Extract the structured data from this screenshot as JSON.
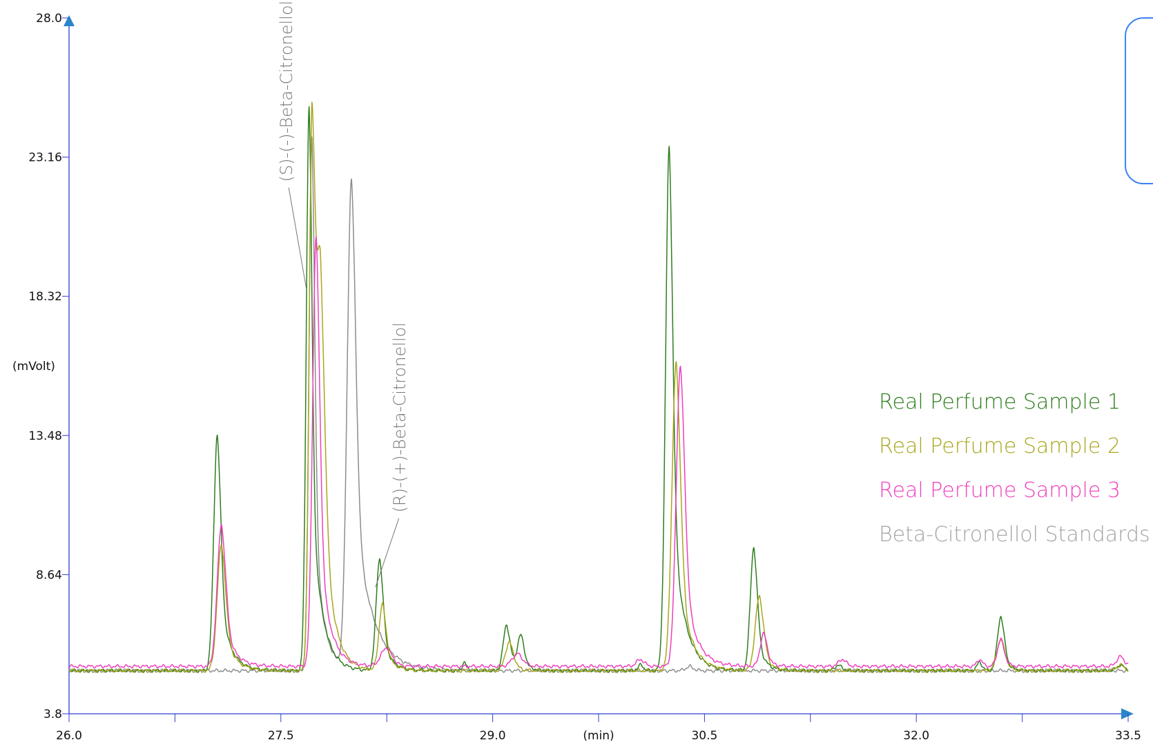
{
  "chart_data": {
    "type": "line",
    "xlabel": "(min)",
    "ylabel": "(mVolt)",
    "xlim": [
      26.0,
      33.5
    ],
    "ylim": [
      3.8,
      28.0
    ],
    "x_ticks": [
      "26.0",
      "27.5",
      "29.0",
      "30.5",
      "32.0",
      "33.5"
    ],
    "y_ticks": [
      "3.8",
      "8.64",
      "13.48",
      "18.32",
      "23.16",
      "28.0"
    ],
    "grid": false,
    "legend_position": "right",
    "annotations": [
      {
        "text": "(S)-(-)-Beta-Citronellol",
        "x": 27.68,
        "y": 18.6
      },
      {
        "text": "(R)-(+)-Beta-Citronellol",
        "x": 28.17,
        "y": 8.2
      }
    ],
    "series": [
      {
        "name": "Real Perfume Sample 1",
        "color": "#2e7d1e",
        "baseline": 5.3,
        "peaks": [
          {
            "x": 27.05,
            "y": 13.5,
            "w": 0.025,
            "tail": 0.07
          },
          {
            "x": 27.7,
            "y": 24.9,
            "w": 0.02,
            "tail": 0.07
          },
          {
            "x": 28.2,
            "y": 9.2,
            "w": 0.025,
            "tail": 0.06
          },
          {
            "x": 28.8,
            "y": 5.6,
            "w": 0.015,
            "tail": 0.02
          },
          {
            "x": 29.1,
            "y": 6.9,
            "w": 0.025,
            "tail": 0.04
          },
          {
            "x": 29.2,
            "y": 6.5,
            "w": 0.025,
            "tail": 0.04
          },
          {
            "x": 30.05,
            "y": 5.5,
            "w": 0.02,
            "tail": 0.02
          },
          {
            "x": 30.25,
            "y": 23.5,
            "w": 0.025,
            "tail": 0.08
          },
          {
            "x": 30.85,
            "y": 9.6,
            "w": 0.025,
            "tail": 0.05
          },
          {
            "x": 31.45,
            "y": 5.5,
            "w": 0.025,
            "tail": 0.02
          },
          {
            "x": 32.45,
            "y": 5.6,
            "w": 0.02,
            "tail": 0.02
          },
          {
            "x": 32.6,
            "y": 7.2,
            "w": 0.025,
            "tail": 0.04
          },
          {
            "x": 33.45,
            "y": 5.5,
            "w": 0.03,
            "tail": 0.02
          }
        ]
      },
      {
        "name": "Real Perfume Sample 2",
        "color": "#a8a61c",
        "baseline": 5.3,
        "peaks": [
          {
            "x": 27.08,
            "y": 9.7,
            "w": 0.03,
            "tail": 0.07
          },
          {
            "x": 27.72,
            "y": 23.5,
            "w": 0.02,
            "tail": 0.07
          },
          {
            "x": 27.78,
            "y": 16.6,
            "w": 0.03,
            "tail": 0.07
          },
          {
            "x": 28.22,
            "y": 7.6,
            "w": 0.025,
            "tail": 0.06
          },
          {
            "x": 29.12,
            "y": 6.3,
            "w": 0.03,
            "tail": 0.04
          },
          {
            "x": 30.3,
            "y": 16.0,
            "w": 0.03,
            "tail": 0.08
          },
          {
            "x": 30.89,
            "y": 7.9,
            "w": 0.03,
            "tail": 0.05
          },
          {
            "x": 32.6,
            "y": 6.4,
            "w": 0.03,
            "tail": 0.04
          },
          {
            "x": 33.45,
            "y": 5.5,
            "w": 0.03,
            "tail": 0.02
          }
        ]
      },
      {
        "name": "Real Perfume Sample 3",
        "color": "#ee3fbd",
        "baseline": 5.45,
        "peaks": [
          {
            "x": 27.08,
            "y": 10.4,
            "w": 0.03,
            "tail": 0.07
          },
          {
            "x": 27.75,
            "y": 20.4,
            "w": 0.025,
            "tail": 0.07
          },
          {
            "x": 28.25,
            "y": 6.1,
            "w": 0.04,
            "tail": 0.05
          },
          {
            "x": 29.18,
            "y": 5.9,
            "w": 0.04,
            "tail": 0.03
          },
          {
            "x": 30.05,
            "y": 5.7,
            "w": 0.03,
            "tail": 0.02
          },
          {
            "x": 30.33,
            "y": 15.9,
            "w": 0.03,
            "tail": 0.08
          },
          {
            "x": 30.92,
            "y": 6.6,
            "w": 0.025,
            "tail": 0.04
          },
          {
            "x": 31.48,
            "y": 5.7,
            "w": 0.03,
            "tail": 0.02
          },
          {
            "x": 32.45,
            "y": 5.7,
            "w": 0.02,
            "tail": 0.02
          },
          {
            "x": 32.6,
            "y": 6.4,
            "w": 0.025,
            "tail": 0.03
          },
          {
            "x": 33.45,
            "y": 5.8,
            "w": 0.03,
            "tail": 0.02
          }
        ]
      },
      {
        "name": "Beta-Citronellol Standards",
        "color": "#8c8c8c",
        "baseline": 5.3,
        "peaks": [
          {
            "x": 27.72,
            "y": 23.9,
            "w": 0.02,
            "tail": 0.06
          },
          {
            "x": 28.0,
            "y": 22.3,
            "w": 0.03,
            "tail": 0.12
          },
          {
            "x": 30.4,
            "y": 5.45,
            "w": 0.03,
            "tail": 0.01
          }
        ]
      }
    ]
  }
}
